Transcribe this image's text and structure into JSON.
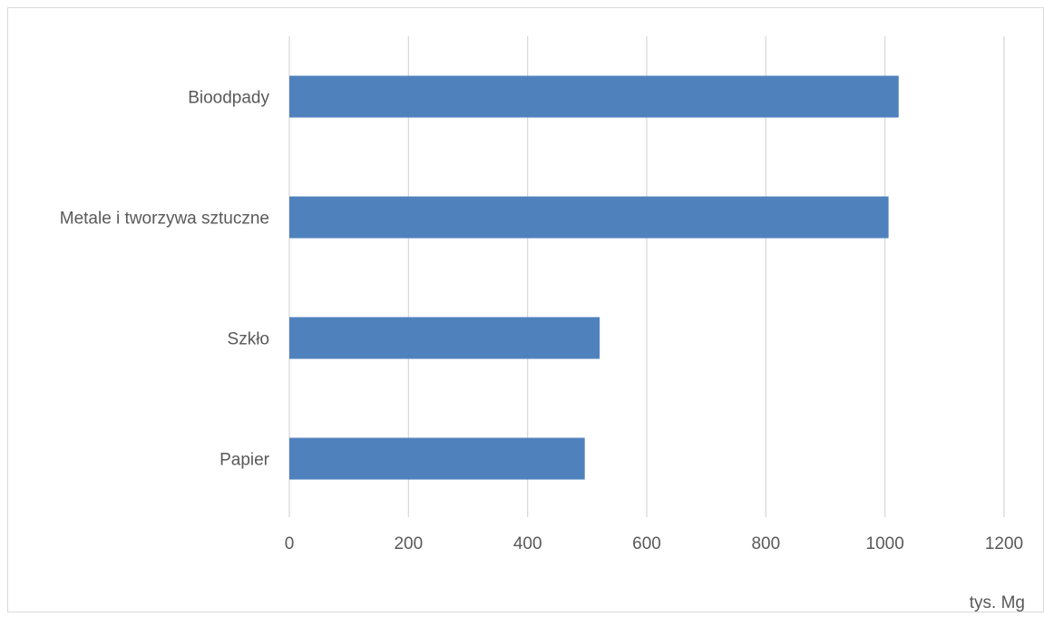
{
  "chart_data": {
    "type": "bar",
    "orientation": "horizontal",
    "categories": [
      "Bioodpady",
      "Metale i tworzywa sztuczne",
      "Szkło",
      "Papier"
    ],
    "values": [
      1023,
      1006,
      521,
      496
    ],
    "xlabel": "tys. Mg",
    "ylabel": "",
    "xlim": [
      0,
      1200
    ],
    "xticks": [
      "0",
      "200",
      "400",
      "600",
      "800",
      "1000",
      "1200"
    ],
    "grid": "vertical",
    "legend": "none"
  },
  "colors": {
    "bar": "#4f81bd",
    "grid": "#d9d9d9",
    "text": "#595959",
    "border": "#d9d9d9"
  }
}
